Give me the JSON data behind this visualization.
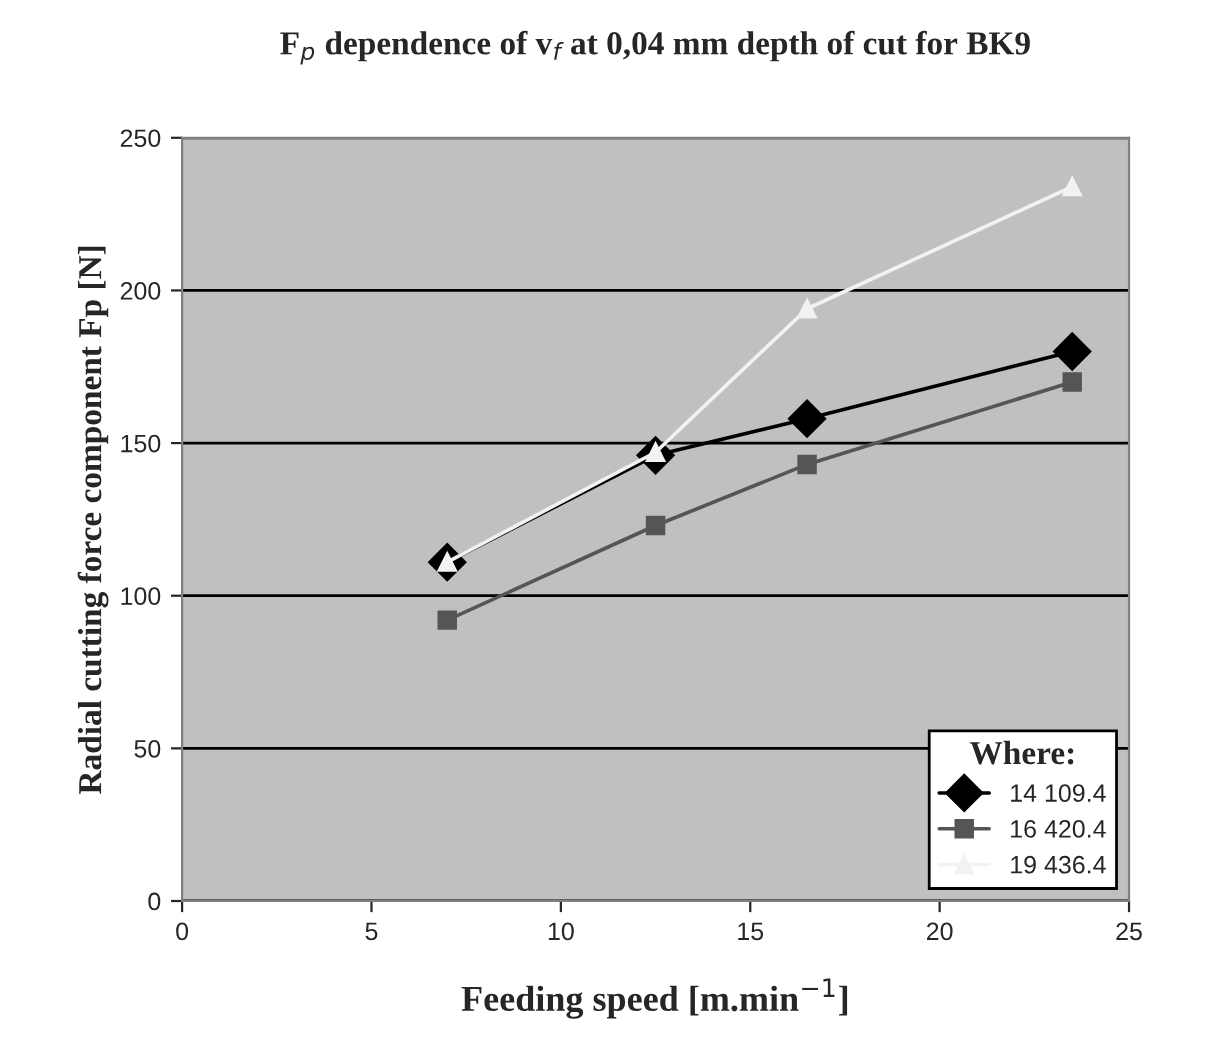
{
  "chart_data": {
    "type": "line",
    "title": "F$_{p}$ dependence of v$_{f}$ at 0,04 mm depth of cut for BK9",
    "xlabel": "Feeding speed [m.min$^{−1}$]",
    "ylabel": "Radial cutting force component Fp [N]",
    "legend_title": "Where:",
    "legend": "bottom right",
    "grid": "y",
    "xlim": [
      0,
      25
    ],
    "xticks": [
      0,
      5,
      10,
      15,
      20,
      25
    ],
    "ylim": [
      0,
      250
    ],
    "yticks": [
      0,
      50,
      100,
      150,
      200,
      250
    ],
    "line_style": "solid",
    "series": [
      {
        "name": "14 109.4",
        "color": "#000000",
        "marker": "diamond",
        "x": [
          7,
          12.5,
          16.5,
          23.5
        ],
        "values": [
          111,
          146,
          158,
          180
        ]
      },
      {
        "name": "16 420.4",
        "color": "#555555",
        "marker": "square",
        "x": [
          7,
          12.5,
          16.5,
          23.5
        ],
        "values": [
          92,
          123,
          143,
          170
        ]
      },
      {
        "name": "19 436.4",
        "color": "#f2f2f2",
        "marker": "triangle",
        "x": [
          7,
          12.5,
          16.5,
          23.5
        ],
        "values": [
          111,
          147,
          194,
          234
        ]
      }
    ]
  }
}
